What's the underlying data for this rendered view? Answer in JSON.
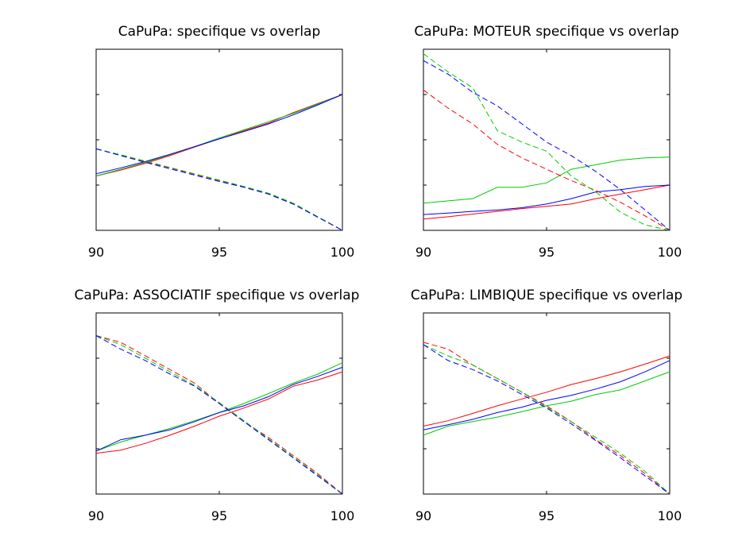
{
  "chart_data": [
    {
      "type": "line",
      "title": "CaPuPa: specifique vs overlap",
      "xlabel": "",
      "ylabel": "",
      "xlim": [
        90,
        100
      ],
      "ylim": [
        0,
        4
      ],
      "xticks": [
        90,
        95,
        100
      ],
      "xtick_labels": [
        "90",
        "95",
        "100"
      ],
      "yticks": [
        1,
        2,
        3
      ],
      "yticklabels_shown": false,
      "grid": false,
      "x": [
        90,
        91,
        92,
        93,
        94,
        95,
        96,
        97,
        98,
        99,
        100
      ],
      "series": [
        {
          "name": "red solid",
          "color": "#ff0000",
          "style": "solid",
          "values": [
            1.2,
            1.33,
            1.48,
            1.65,
            1.84,
            2.02,
            2.2,
            2.37,
            2.6,
            2.8,
            3.0
          ]
        },
        {
          "name": "green solid",
          "color": "#00cc00",
          "style": "solid",
          "values": [
            1.2,
            1.35,
            1.5,
            1.67,
            1.85,
            2.04,
            2.22,
            2.4,
            2.58,
            2.79,
            3.0
          ]
        },
        {
          "name": "blue solid",
          "color": "#0000ff",
          "style": "solid",
          "values": [
            1.25,
            1.38,
            1.52,
            1.68,
            1.85,
            2.02,
            2.18,
            2.35,
            2.55,
            2.77,
            3.0
          ]
        },
        {
          "name": "red dashed",
          "color": "#ff0000",
          "style": "dashed",
          "values": [
            1.8,
            1.66,
            1.52,
            1.38,
            1.24,
            1.1,
            0.96,
            0.82,
            0.6,
            0.3,
            0.0
          ]
        },
        {
          "name": "green dashed",
          "color": "#00cc00",
          "style": "dashed",
          "values": [
            1.8,
            1.67,
            1.53,
            1.39,
            1.25,
            1.11,
            0.97,
            0.82,
            0.6,
            0.3,
            0.0
          ]
        },
        {
          "name": "blue dashed",
          "color": "#0000ff",
          "style": "dashed",
          "values": [
            1.8,
            1.65,
            1.5,
            1.36,
            1.22,
            1.08,
            0.95,
            0.8,
            0.58,
            0.29,
            0.0
          ]
        }
      ]
    },
    {
      "type": "line",
      "title": "CaPuPa: MOTEUR specifique vs overlap",
      "xlabel": "",
      "ylabel": "",
      "xlim": [
        90,
        100
      ],
      "ylim": [
        0,
        4
      ],
      "xticks": [
        90,
        95,
        100
      ],
      "xtick_labels": [
        "90",
        "95",
        "100"
      ],
      "yticks": [
        1,
        2,
        3
      ],
      "yticklabels_shown": false,
      "grid": false,
      "x": [
        90,
        91,
        92,
        93,
        94,
        95,
        96,
        97,
        98,
        99,
        100
      ],
      "series": [
        {
          "name": "red solid",
          "color": "#ff0000",
          "style": "solid",
          "values": [
            0.25,
            0.3,
            0.36,
            0.42,
            0.48,
            0.53,
            0.58,
            0.7,
            0.8,
            0.9,
            1.0
          ]
        },
        {
          "name": "green solid",
          "color": "#00cc00",
          "style": "solid",
          "values": [
            0.6,
            0.65,
            0.7,
            0.95,
            0.95,
            1.05,
            1.35,
            1.45,
            1.55,
            1.6,
            1.62
          ]
        },
        {
          "name": "blue solid",
          "color": "#0000ff",
          "style": "solid",
          "values": [
            0.35,
            0.38,
            0.42,
            0.45,
            0.5,
            0.58,
            0.7,
            0.85,
            0.9,
            0.97,
            1.0
          ]
        },
        {
          "name": "red dashed",
          "color": "#ff0000",
          "style": "dashed",
          "values": [
            3.1,
            2.7,
            2.35,
            1.9,
            1.6,
            1.35,
            1.1,
            0.88,
            0.62,
            0.32,
            0.0
          ]
        },
        {
          "name": "green dashed",
          "color": "#00cc00",
          "style": "dashed",
          "values": [
            3.9,
            3.5,
            3.15,
            2.2,
            1.95,
            1.75,
            1.2,
            0.85,
            0.4,
            0.12,
            0.0
          ]
        },
        {
          "name": "blue dashed",
          "color": "#0000ff",
          "style": "dashed",
          "values": [
            3.75,
            3.45,
            3.05,
            2.75,
            2.35,
            1.95,
            1.65,
            1.3,
            0.9,
            0.45,
            0.0
          ]
        }
      ]
    },
    {
      "type": "line",
      "title": "CaPuPa: ASSOCIATIF specifique vs overlap",
      "xlabel": "",
      "ylabel": "",
      "xlim": [
        90,
        100
      ],
      "ylim": [
        0,
        4
      ],
      "xticks": [
        90,
        95,
        100
      ],
      "xtick_labels": [
        "90",
        "95",
        "100"
      ],
      "yticks": [
        1,
        2,
        3
      ],
      "yticklabels_shown": false,
      "grid": false,
      "x": [
        90,
        91,
        92,
        93,
        94,
        95,
        96,
        97,
        98,
        99,
        100
      ],
      "series": [
        {
          "name": "red solid",
          "color": "#ff0000",
          "style": "solid",
          "values": [
            0.9,
            0.97,
            1.12,
            1.3,
            1.5,
            1.72,
            1.9,
            2.1,
            2.38,
            2.52,
            2.7
          ]
        },
        {
          "name": "green solid",
          "color": "#00cc00",
          "style": "solid",
          "values": [
            0.95,
            1.15,
            1.3,
            1.45,
            1.62,
            1.8,
            2.0,
            2.22,
            2.45,
            2.65,
            2.9
          ]
        },
        {
          "name": "blue solid",
          "color": "#0000ff",
          "style": "solid",
          "values": [
            0.95,
            1.2,
            1.3,
            1.42,
            1.6,
            1.8,
            1.95,
            2.15,
            2.42,
            2.6,
            2.8
          ]
        },
        {
          "name": "red dashed",
          "color": "#ff0000",
          "style": "dashed",
          "values": [
            3.5,
            3.35,
            3.05,
            2.75,
            2.45,
            2.0,
            1.6,
            1.25,
            0.85,
            0.45,
            0.0
          ]
        },
        {
          "name": "green dashed",
          "color": "#00cc00",
          "style": "dashed",
          "values": [
            3.5,
            3.3,
            3.0,
            2.7,
            2.4,
            2.02,
            1.62,
            1.22,
            0.82,
            0.42,
            0.0
          ]
        },
        {
          "name": "blue dashed",
          "color": "#0000ff",
          "style": "dashed",
          "values": [
            3.5,
            3.2,
            2.95,
            2.65,
            2.38,
            2.0,
            1.6,
            1.2,
            0.8,
            0.4,
            0.0
          ]
        }
      ]
    },
    {
      "type": "line",
      "title": "CaPuPa: LIMBIQUE specifique vs overlap",
      "xlabel": "",
      "ylabel": "",
      "xlim": [
        90,
        100
      ],
      "ylim": [
        0,
        4
      ],
      "xticks": [
        90,
        95,
        100
      ],
      "xtick_labels": [
        "90",
        "95",
        "100"
      ],
      "yticks": [
        1,
        2,
        3
      ],
      "yticklabels_shown": false,
      "grid": false,
      "x": [
        90,
        91,
        92,
        93,
        94,
        95,
        96,
        97,
        98,
        99,
        100
      ],
      "series": [
        {
          "name": "red solid",
          "color": "#ff0000",
          "style": "solid",
          "values": [
            1.5,
            1.62,
            1.78,
            1.95,
            2.1,
            2.25,
            2.42,
            2.55,
            2.7,
            2.87,
            3.05
          ]
        },
        {
          "name": "green solid",
          "color": "#00cc00",
          "style": "solid",
          "values": [
            1.3,
            1.5,
            1.6,
            1.7,
            1.82,
            1.95,
            2.05,
            2.2,
            2.3,
            2.5,
            2.7
          ]
        },
        {
          "name": "blue solid",
          "color": "#0000ff",
          "style": "solid",
          "values": [
            1.42,
            1.53,
            1.65,
            1.8,
            1.92,
            2.07,
            2.18,
            2.32,
            2.48,
            2.7,
            2.95
          ]
        },
        {
          "name": "red dashed",
          "color": "#ff0000",
          "style": "dashed",
          "values": [
            3.35,
            3.2,
            2.85,
            2.55,
            2.25,
            1.95,
            1.6,
            1.2,
            0.85,
            0.45,
            0.0
          ]
        },
        {
          "name": "green dashed",
          "color": "#00cc00",
          "style": "dashed",
          "values": [
            3.3,
            3.05,
            2.85,
            2.55,
            2.25,
            1.92,
            1.6,
            1.25,
            0.9,
            0.5,
            0.0
          ]
        },
        {
          "name": "blue dashed",
          "color": "#0000ff",
          "style": "dashed",
          "values": [
            3.3,
            2.95,
            2.75,
            2.5,
            2.2,
            1.9,
            1.55,
            1.18,
            0.8,
            0.4,
            0.0
          ]
        }
      ]
    }
  ]
}
